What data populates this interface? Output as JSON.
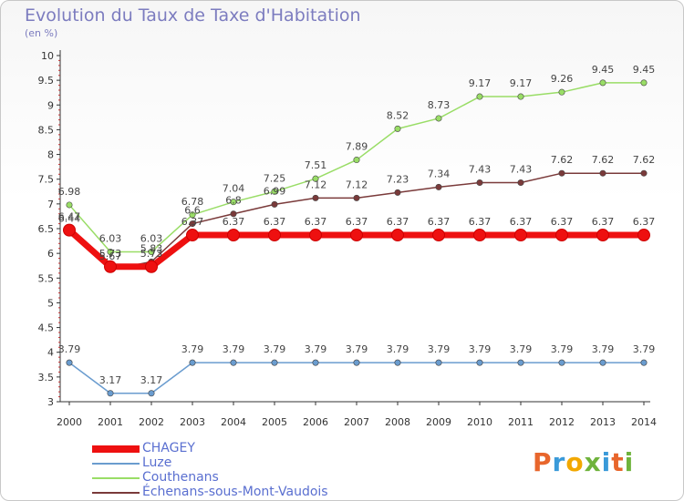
{
  "title": "Evolution du Taux de Taxe d'Habitation",
  "unit_label": "(en %)",
  "logo": {
    "text": "Proxiti",
    "letter_colors": [
      "#e8662c",
      "#3a9ad9",
      "#f2a800",
      "#6fb33c",
      "#3a9ad9",
      "#e8662c",
      "#6fb33c"
    ]
  },
  "chart_data": {
    "type": "line",
    "categories": [
      "2000",
      "2001",
      "2002",
      "2003",
      "2004",
      "2005",
      "2006",
      "2007",
      "2008",
      "2009",
      "2010",
      "2011",
      "2012",
      "2013",
      "2014"
    ],
    "ylim": [
      3,
      10
    ],
    "yticks": [
      "3",
      "3.5",
      "4",
      "4.5",
      "5",
      "5.5",
      "6",
      "6.5",
      "7",
      "7.5",
      "8",
      "8.5",
      "9",
      "9.5",
      "10"
    ],
    "grid": false,
    "legend_position": "bottom-left",
    "series": [
      {
        "name": "CHAGEY",
        "color": "#ee1010",
        "emphasis": true,
        "values": [
          6.47,
          5.73,
          5.73,
          6.37,
          6.37,
          6.37,
          6.37,
          6.37,
          6.37,
          6.37,
          6.37,
          6.37,
          6.37,
          6.37,
          6.37
        ],
        "labels": [
          "6.47",
          "5.73",
          "5.73",
          "6.37",
          "6.37",
          "6.37",
          "6.37",
          "6.37",
          "6.37",
          "6.37",
          "6.37",
          "6.37",
          "6.37",
          "6.37",
          "6.37"
        ]
      },
      {
        "name": "Luze",
        "color": "#6a9ccf",
        "values": [
          3.79,
          3.17,
          3.17,
          3.79,
          3.79,
          3.79,
          3.79,
          3.79,
          3.79,
          3.79,
          3.79,
          3.79,
          3.79,
          3.79,
          3.79
        ],
        "labels": [
          "3.79",
          "3.17",
          "3.17",
          "3.79",
          "3.79",
          "3.79",
          "3.79",
          "3.79",
          "3.79",
          "3.79",
          "3.79",
          "3.79",
          "3.79",
          "3.79",
          "3.79"
        ]
      },
      {
        "name": "Couthenans",
        "color": "#99dd66",
        "values": [
          6.98,
          6.03,
          6.03,
          6.78,
          7.04,
          7.25,
          7.51,
          7.89,
          8.52,
          8.73,
          9.17,
          9.17,
          9.26,
          9.45,
          9.45
        ],
        "labels": [
          "6.98",
          "6.03",
          "6.03",
          "6.78",
          "7.04",
          "7.25",
          "7.51",
          "7.89",
          "8.52",
          "8.73",
          "9.17",
          "9.17",
          "9.26",
          "9.45",
          "9.45"
        ]
      },
      {
        "name": "Échenans-sous-Mont-Vaudois",
        "color": "#7a3a3a",
        "values": [
          6.44,
          5.67,
          5.83,
          6.6,
          6.8,
          6.99,
          7.12,
          7.12,
          7.23,
          7.34,
          7.43,
          7.43,
          7.62,
          7.62,
          7.62
        ],
        "labels": [
          "6.44",
          "5.67",
          "5.83",
          "6.6",
          "6.8",
          "6.99",
          "7.12",
          "7.12",
          "7.23",
          "7.34",
          "7.43",
          "7.43",
          "7.62",
          "7.62",
          "7.62"
        ]
      }
    ]
  }
}
